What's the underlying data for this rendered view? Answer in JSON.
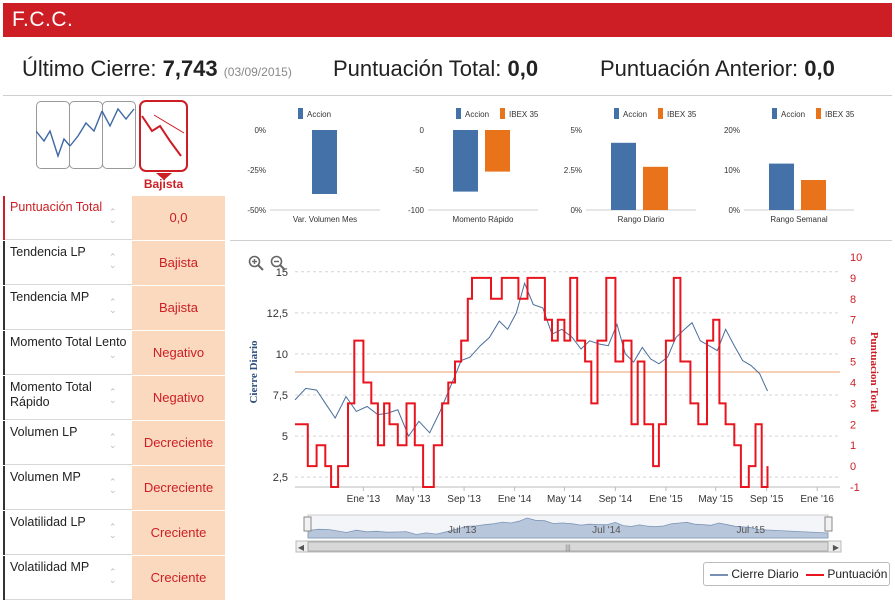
{
  "header": {
    "title": "F.C.C."
  },
  "summary": {
    "last_close_label": "Último Cierre:",
    "last_close_value": "7,743",
    "last_close_date": "(03/09/2015)",
    "total_score_label": "Puntuación Total:",
    "total_score_value": "0,0",
    "previous_score_label": "Puntuación Anterior:",
    "previous_score_value": "0,0"
  },
  "trend": {
    "selected_label": "Bajista"
  },
  "scores": [
    {
      "name": "Puntuación Total",
      "value": "0,0",
      "highlight": true
    },
    {
      "name": "Tendencia LP",
      "value": "Bajista"
    },
    {
      "name": "Tendencia MP",
      "value": "Bajista"
    },
    {
      "name": "Momento Total Lento",
      "value": "Negativo"
    },
    {
      "name": "Momento Total Rápido",
      "value": "Negativo"
    },
    {
      "name": "Volumen LP",
      "value": "Decreciente"
    },
    {
      "name": "Volumen MP",
      "value": "Decreciente"
    },
    {
      "name": "Volatilidad LP",
      "value": "Creciente"
    },
    {
      "name": "Volatilidad MP",
      "value": "Creciente"
    }
  ],
  "colors": {
    "accent": "#cc1e24",
    "accion": "#4472a8",
    "ibex": "#e8731a",
    "value_bg": "#fbd9bf",
    "price_line": "#4a6d9c",
    "score_line": "#e8141e",
    "threshold": "#f0b48a"
  },
  "chart_data": [
    {
      "type": "bar",
      "categories": [
        "Var. Volumen Mes"
      ],
      "series": [
        {
          "name": "Accion",
          "values": [
            -40
          ]
        }
      ],
      "ylim": [
        -50,
        0
      ],
      "yticks": [
        "0%",
        "-25%",
        "-50%"
      ],
      "ytick_values": [
        0,
        -25,
        -50
      ]
    },
    {
      "type": "bar",
      "categories": [
        "Momento Rápido"
      ],
      "series": [
        {
          "name": "Accion",
          "values": [
            -77
          ]
        },
        {
          "name": "IBEX 35",
          "values": [
            -52
          ]
        }
      ],
      "ylim": [
        -100,
        0
      ],
      "yticks": [
        "0",
        "-50",
        "-100"
      ],
      "ytick_values": [
        0,
        -50,
        -100
      ]
    },
    {
      "type": "bar",
      "categories": [
        "Rango Diario"
      ],
      "series": [
        {
          "name": "Accion",
          "values": [
            4.2
          ]
        },
        {
          "name": "IBEX 35",
          "values": [
            2.7
          ]
        }
      ],
      "ylim": [
        0,
        5
      ],
      "yticks": [
        "5%",
        "2.5%",
        "0%"
      ],
      "ytick_values": [
        5,
        2.5,
        0
      ]
    },
    {
      "type": "bar",
      "categories": [
        "Rango Semanal"
      ],
      "series": [
        {
          "name": "Accion",
          "values": [
            11.6
          ]
        },
        {
          "name": "IBEX 35",
          "values": [
            7.5
          ]
        }
      ],
      "ylim": [
        0,
        20
      ],
      "yticks": [
        "20%",
        "10%",
        "0%"
      ],
      "ytick_values": [
        20,
        10,
        0
      ]
    },
    {
      "type": "line",
      "ylabel": "Cierre Diario",
      "y2label": "Puntuacion Total",
      "ylim": [
        1.9,
        15.9
      ],
      "y2lim": [
        -1,
        10
      ],
      "yticks": [
        2.5,
        5,
        7.5,
        10,
        12.5,
        15
      ],
      "ytick_labels": [
        "2,5",
        "5",
        "7,5",
        "10",
        "12,5",
        "15"
      ],
      "y2ticks": [
        -1,
        0,
        1,
        2,
        3,
        4,
        5,
        6,
        7,
        8,
        9,
        10
      ],
      "xlim": [
        "2012-07-20",
        "2016-02-25"
      ],
      "xticks": [
        "2013-01-01",
        "2013-05-01",
        "2013-09-01",
        "2014-01-01",
        "2014-05-01",
        "2014-09-01",
        "2015-01-01",
        "2015-05-01",
        "2015-09-01",
        "2016-01-01"
      ],
      "xtick_labels": [
        "Ene '13",
        "May '13",
        "Sep '13",
        "Ene '14",
        "May '14",
        "Sep '14",
        "Ene '15",
        "May '15",
        "Sep '15",
        "Ene '16"
      ],
      "threshold": 8.9,
      "series": [
        {
          "name": "Cierre Diario",
          "axis": "left",
          "x": [
            "2012-07-20",
            "2012-08-15",
            "2012-09-10",
            "2012-10-01",
            "2012-10-25",
            "2012-11-20",
            "2012-12-15",
            "2013-01-10",
            "2013-02-05",
            "2013-03-01",
            "2013-03-25",
            "2013-04-20",
            "2013-05-15",
            "2013-06-10",
            "2013-07-05",
            "2013-07-30",
            "2013-08-25",
            "2013-09-15",
            "2013-10-10",
            "2013-11-01",
            "2013-11-25",
            "2013-12-15",
            "2014-01-05",
            "2014-01-25",
            "2014-02-15",
            "2014-03-10",
            "2014-04-01",
            "2014-04-25",
            "2014-05-20",
            "2014-06-10",
            "2014-07-01",
            "2014-07-25",
            "2014-08-15",
            "2014-09-05",
            "2014-09-25",
            "2014-10-15",
            "2014-11-05",
            "2014-11-25",
            "2014-12-15",
            "2015-01-05",
            "2015-01-25",
            "2015-02-15",
            "2015-03-05",
            "2015-03-25",
            "2015-04-15",
            "2015-05-05",
            "2015-05-25",
            "2015-06-15",
            "2015-07-05",
            "2015-07-25",
            "2015-08-15",
            "2015-09-03"
          ],
          "values": [
            7.2,
            7.9,
            7.8,
            7.0,
            6.1,
            7.4,
            6.5,
            6.8,
            6.3,
            6.4,
            6.6,
            5.0,
            5.9,
            5.2,
            6.5,
            8.0,
            9.6,
            9.8,
            10.5,
            11.0,
            12.0,
            11.5,
            12.5,
            14.3,
            13.0,
            12.8,
            11.2,
            11.5,
            11.0,
            10.3,
            10.8,
            10.6,
            10.5,
            11.8,
            10.0,
            9.5,
            10.4,
            9.7,
            9.4,
            9.8,
            11.0,
            11.5,
            11.9,
            10.8,
            10.5,
            10.2,
            11.5,
            10.5,
            9.6,
            9.3,
            8.8,
            7.743
          ]
        },
        {
          "name": "Puntuación",
          "axis": "right",
          "step": true,
          "x": [
            "2012-07-20",
            "2012-08-20",
            "2012-09-10",
            "2012-10-01",
            "2012-10-15",
            "2012-11-01",
            "2012-11-25",
            "2012-12-10",
            "2013-01-01",
            "2013-01-20",
            "2013-02-05",
            "2013-02-20",
            "2013-03-05",
            "2013-03-25",
            "2013-04-15",
            "2013-05-05",
            "2013-05-25",
            "2013-06-20",
            "2013-07-10",
            "2013-07-25",
            "2013-08-10",
            "2013-08-25",
            "2013-09-10",
            "2013-09-20",
            "2013-10-15",
            "2013-11-05",
            "2013-12-01",
            "2013-12-20",
            "2014-01-10",
            "2014-02-01",
            "2014-02-20",
            "2014-03-15",
            "2014-04-01",
            "2014-04-15",
            "2014-05-01",
            "2014-05-15",
            "2014-06-01",
            "2014-06-20",
            "2014-07-05",
            "2014-07-20",
            "2014-08-10",
            "2014-09-01",
            "2014-09-20",
            "2014-10-10",
            "2014-10-25",
            "2014-11-10",
            "2014-12-01",
            "2014-12-15",
            "2015-01-01",
            "2015-01-20",
            "2015-02-05",
            "2015-03-01",
            "2015-03-20",
            "2015-04-10",
            "2015-04-25",
            "2015-05-10",
            "2015-05-25",
            "2015-06-15",
            "2015-07-01",
            "2015-07-20",
            "2015-08-05",
            "2015-08-20",
            "2015-09-03"
          ],
          "values": [
            2,
            0,
            1,
            0,
            -1,
            0,
            3,
            6,
            4,
            3,
            1,
            3,
            2,
            1,
            3,
            1,
            -1,
            1,
            3,
            4,
            5,
            6,
            8,
            9,
            9,
            8,
            9,
            9,
            8,
            9,
            9,
            7,
            6,
            7,
            6,
            9,
            6,
            5,
            3,
            6,
            9,
            5,
            6,
            2,
            5,
            2,
            0,
            2,
            6,
            9,
            5,
            3,
            2,
            6,
            7,
            3,
            2,
            1,
            -1,
            0,
            2,
            -1,
            0
          ]
        }
      ]
    }
  ],
  "main_chart_legend": {
    "price": "Cierre Diario",
    "score": "Puntuación"
  },
  "navigator": {
    "labels": [
      "Jul '13",
      "Jul '14",
      "Jul '15"
    ]
  }
}
